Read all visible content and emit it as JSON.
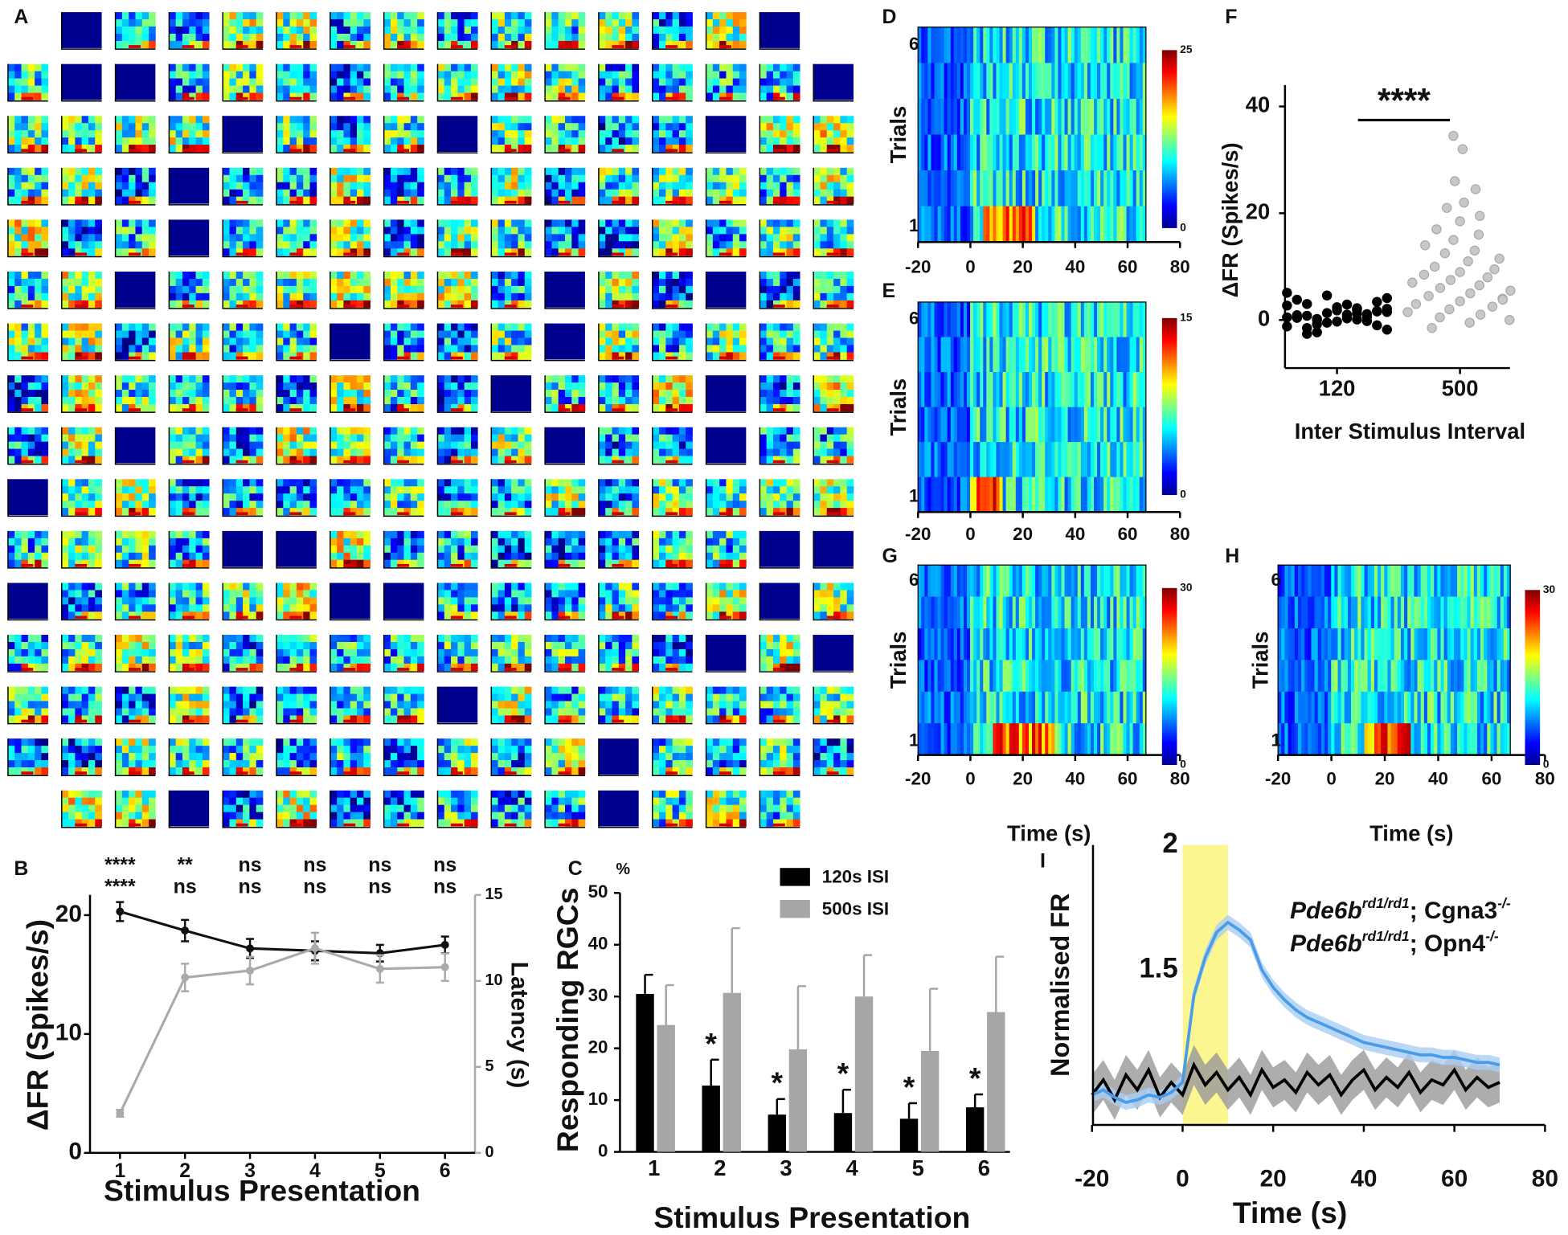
{
  "chart_data": [
    {
      "type": "heatmap-grid",
      "panel": "A"
    },
    {
      "type": "line",
      "panel": "B",
      "categories": [
        "1",
        "2",
        "3",
        "4",
        "5",
        "6"
      ],
      "xlabel": "Stimulus Presentation",
      "ylabel": "ΔFR (Spikes/s)",
      "y2label": "Latency (s)",
      "ylim": [
        0,
        21.7
      ],
      "yticks": [
        0,
        10,
        20
      ],
      "y2lim": [
        0,
        15
      ],
      "y2ticks": [
        0,
        5,
        10,
        15
      ],
      "series": [
        {
          "name": "ΔFR",
          "color": "#111111",
          "values": [
            20.3,
            18.7,
            17.2,
            17.0,
            16.8,
            17.5
          ],
          "errors": [
            0.8,
            0.9,
            0.8,
            0.8,
            0.7,
            0.7
          ]
        },
        {
          "name": "Latency",
          "color": "#aaaaaa",
          "axis": "y2",
          "values": [
            2.3,
            10.2,
            10.6,
            11.9,
            10.7,
            10.8
          ],
          "errors": [
            0.2,
            0.8,
            0.8,
            0.9,
            0.8,
            0.8
          ]
        }
      ],
      "annotations": [
        {
          "color": "#333333",
          "texts": [
            "****",
            "**",
            "ns",
            "ns",
            "ns",
            "ns"
          ]
        },
        {
          "color": "#aaaaaa",
          "texts": [
            "****",
            "ns",
            "ns",
            "ns",
            "ns",
            "ns"
          ]
        }
      ]
    },
    {
      "type": "bar",
      "panel": "C",
      "categories": [
        "1",
        "2",
        "3",
        "4",
        "5",
        "6"
      ],
      "xlabel": "Stimulus Presentation",
      "ylabel": "Responding RGCs",
      "unit": "%",
      "ylim": [
        0,
        50
      ],
      "yticks": [
        0,
        10,
        20,
        30,
        40,
        50
      ],
      "series": [
        {
          "name": "120s ISI",
          "color": "#000000",
          "values": [
            30.5,
            12.8,
            7.2,
            7.5,
            6.4,
            8.6
          ],
          "errors": [
            3.7,
            5.0,
            3.0,
            4.5,
            3.0,
            2.5
          ]
        },
        {
          "name": "500s ISI",
          "color": "#a6a6a6",
          "values": [
            24.5,
            30.7,
            19.8,
            30.0,
            19.5,
            27.0
          ],
          "errors": [
            7.7,
            12.5,
            12.2,
            8.0,
            12.0,
            10.7
          ]
        }
      ],
      "annotations": [
        {
          "x": "2",
          "text": "*"
        },
        {
          "x": "3",
          "text": "*"
        },
        {
          "x": "4",
          "text": "*"
        },
        {
          "x": "5",
          "text": "*"
        },
        {
          "x": "6",
          "text": "*"
        }
      ]
    },
    {
      "type": "heatmap",
      "panel": "D",
      "ylabel": "Trials",
      "xlim": [
        -20,
        80
      ],
      "xticks": [
        -20,
        0,
        20,
        40,
        60,
        80
      ],
      "ylim": [
        0.5,
        6.5
      ],
      "yticks": [
        1,
        6
      ],
      "clim": [
        0,
        25
      ],
      "cticks": [
        0,
        25
      ]
    },
    {
      "type": "heatmap",
      "panel": "E",
      "ylabel": "Trials",
      "xlim": [
        -20,
        80
      ],
      "xticks": [
        -20,
        0,
        20,
        40,
        60,
        80
      ],
      "ylim": [
        0.5,
        6.5
      ],
      "yticks": [
        1,
        6
      ],
      "clim": [
        0,
        15
      ],
      "cticks": [
        0,
        15
      ]
    },
    {
      "type": "scatter",
      "panel": "F",
      "categories": [
        "120",
        "500"
      ],
      "xlabel": "Inter Stimulus Interval",
      "ylabel": "ΔFR (Spikes/s)",
      "ylim": [
        -9,
        44
      ],
      "yticks": [
        0,
        20,
        40
      ],
      "annotation": "****",
      "series": [
        {
          "name": "120",
          "color": "#000000",
          "values": [
            0.5,
            1.2,
            -0.8,
            2.1,
            0.3,
            -1.5,
            3.4,
            1.8,
            0.9,
            -0.2,
            4.6,
            2.7,
            0.1,
            -2.3,
            1.5,
            0.7,
            3.0,
            -1.0,
            2.4,
            0.4,
            1.1,
            -0.5,
            5.1,
            1.9,
            0.2,
            -1.8,
            2.9,
            0.8,
            1.6,
            -0.3,
            3.8,
            0.6,
            1.3,
            -1.2,
            2.2,
            0.0,
            4.1,
            1.0,
            -2.6,
            1.7
          ]
        },
        {
          "name": "500",
          "color": "#c8c8c8",
          "values": [
            34.5,
            32,
            26,
            24.5,
            22,
            21,
            19.5,
            18.5,
            17,
            16,
            15,
            14,
            13,
            12.5,
            11.5,
            11,
            10,
            9.5,
            9,
            8.5,
            8,
            7.5,
            7,
            6.5,
            6,
            5.5,
            5,
            4.5,
            4,
            3.5,
            3,
            2.5,
            2,
            1.5,
            1,
            0.5,
            0,
            -0.5,
            -1.5,
            3.8
          ]
        }
      ]
    },
    {
      "type": "heatmap",
      "panel": "G",
      "ylabel": "Trials",
      "xlabel": "Time (s)",
      "xlim": [
        -20,
        80
      ],
      "xticks": [
        -20,
        0,
        20,
        40,
        60,
        80
      ],
      "ylim": [
        0.5,
        6.5
      ],
      "yticks": [
        1,
        6
      ],
      "clim": [
        0,
        30
      ],
      "cticks": [
        0,
        30
      ]
    },
    {
      "type": "heatmap",
      "panel": "H",
      "ylabel": "Trials",
      "xlabel": "Time (s)",
      "xlim": [
        -20,
        80
      ],
      "xticks": [
        -20,
        0,
        20,
        40,
        60,
        80
      ],
      "ylim": [
        0.5,
        6.5
      ],
      "yticks": [
        1,
        6
      ],
      "clim": [
        0,
        30
      ],
      "cticks": [
        0,
        30
      ]
    },
    {
      "type": "line",
      "panel": "I",
      "xlabel": "Time (s)",
      "ylabel": "Normalised FR",
      "xlim": [
        -20,
        80
      ],
      "xticks": [
        -20,
        0,
        20,
        40,
        60,
        80
      ],
      "ylim": [
        0.88,
        2.0
      ],
      "yticks": [
        1.5,
        2
      ],
      "stimulus": [
        0,
        10
      ],
      "stimulus_color": "#fbf68f",
      "x": [
        -20,
        -17.5,
        -15,
        -12.5,
        -10,
        -7.5,
        -5,
        -2.5,
        0,
        2.5,
        5,
        7.5,
        10,
        12.5,
        15,
        17.5,
        20,
        22.5,
        25,
        27.5,
        30,
        32.5,
        35,
        37.5,
        40,
        42.5,
        45,
        47.5,
        50,
        52.5,
        55,
        57.5,
        60,
        62.5,
        65,
        67.5,
        70
      ],
      "series": [
        {
          "label_parts": [
            {
              "text": "Pde6b",
              "sup": "rd1/rd1"
            },
            {
              "text": "; Cgna3",
              "sup": "-/-"
            }
          ],
          "color": "#4a9be8",
          "band_color": "#a9cdf2",
          "error": 0.03,
          "values": [
            1.0,
            1.02,
            0.99,
            0.97,
            0.98,
            1.0,
            0.99,
            1.01,
            1.05,
            1.4,
            1.55,
            1.65,
            1.69,
            1.66,
            1.62,
            1.5,
            1.43,
            1.38,
            1.34,
            1.31,
            1.29,
            1.27,
            1.25,
            1.23,
            1.21,
            1.2,
            1.19,
            1.18,
            1.17,
            1.16,
            1.16,
            1.15,
            1.15,
            1.14,
            1.13,
            1.13,
            1.12
          ]
        },
        {
          "label_parts": [
            {
              "text": "Pde6b",
              "sup": "rd1/rd1"
            },
            {
              "text": "; Opn4",
              "sup": "-/-"
            }
          ],
          "color": "#000000",
          "band_color": "#999999",
          "error": 0.08,
          "legend_color": "#333333",
          "values": [
            1.0,
            1.06,
            0.98,
            1.08,
            1.02,
            1.1,
            0.99,
            1.05,
            1.0,
            1.12,
            1.04,
            1.09,
            1.02,
            1.07,
            1.0,
            1.1,
            1.03,
            1.06,
            1.01,
            1.09,
            1.04,
            1.08,
            1.0,
            1.06,
            1.1,
            1.02,
            1.07,
            1.03,
            1.09,
            1.01,
            1.06,
            1.04,
            1.1,
            1.02,
            1.07,
            1.03,
            1.05
          ]
        }
      ]
    }
  ]
}
